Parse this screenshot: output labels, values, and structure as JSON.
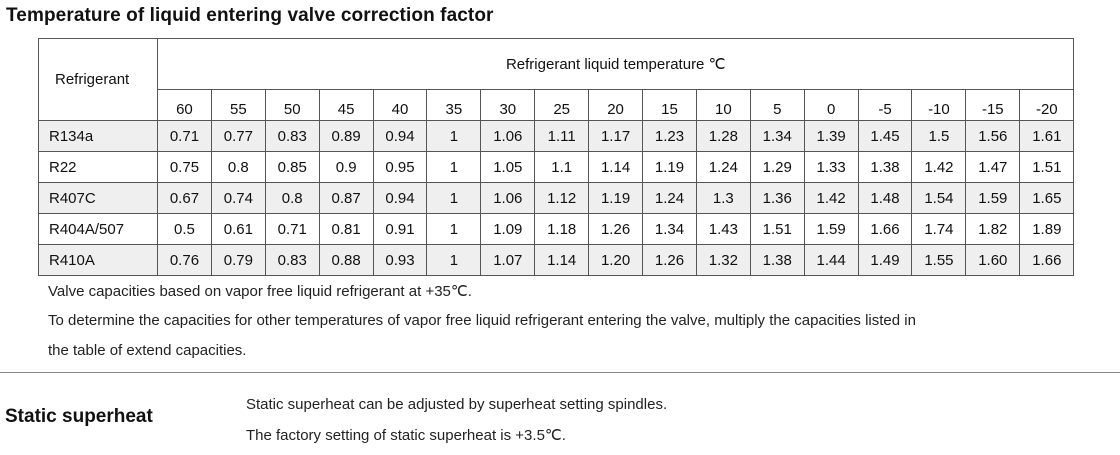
{
  "title": "Temperature of liquid entering valve correction factor",
  "table": {
    "refrigerant_header": "Refrigerant",
    "temperature_header": "Refrigerant liquid temperature    ℃",
    "temperatures": [
      "60",
      "55",
      "50",
      "45",
      "40",
      "35",
      "30",
      "25",
      "20",
      "15",
      "10",
      "5",
      "0",
      "-5",
      "-10",
      "-15",
      "-20"
    ],
    "rows": [
      {
        "name": "R134a",
        "values": [
          "0.71",
          "0.77",
          "0.83",
          "0.89",
          "0.94",
          "1",
          "1.06",
          "1.11",
          "1.17",
          "1.23",
          "1.28",
          "1.34",
          "1.39",
          "1.45",
          "1.5",
          "1.56",
          "1.61"
        ]
      },
      {
        "name": "R22",
        "values": [
          "0.75",
          "0.8",
          "0.85",
          "0.9",
          "0.95",
          "1",
          "1.05",
          "1.1",
          "1.14",
          "1.19",
          "1.24",
          "1.29",
          "1.33",
          "1.38",
          "1.42",
          "1.47",
          "1.51"
        ]
      },
      {
        "name": "R407C",
        "values": [
          "0.67",
          "0.74",
          "0.8",
          "0.87",
          "0.94",
          "1",
          "1.06",
          "1.12",
          "1.19",
          "1.24",
          "1.3",
          "1.36",
          "1.42",
          "1.48",
          "1.54",
          "1.59",
          "1.65"
        ]
      },
      {
        "name": "R404A/507",
        "values": [
          "0.5",
          "0.61",
          "0.71",
          "0.81",
          "0.91",
          "1",
          "1.09",
          "1.18",
          "1.26",
          "1.34",
          "1.43",
          "1.51",
          "1.59",
          "1.66",
          "1.74",
          "1.82",
          "1.89"
        ]
      },
      {
        "name": "R410A",
        "values": [
          "0.76",
          "0.79",
          "0.83",
          "0.88",
          "0.93",
          "1",
          "1.07",
          "1.14",
          "1.20",
          "1.26",
          "1.32",
          "1.38",
          "1.44",
          "1.49",
          "1.55",
          "1.60",
          "1.66"
        ]
      }
    ]
  },
  "notes": [
    "Valve capacities based on vapor free liquid refrigerant at +35℃.",
    "To determine the capacities for other temperatures of vapor free liquid refrigerant entering the valve, multiply the capacities listed in",
    "the table of extend capacities."
  ],
  "static_superheat": {
    "heading": "Static superheat",
    "lines": [
      "Static superheat can be adjusted by superheat setting spindles.",
      "The factory setting of static superheat is +3.5℃."
    ]
  }
}
